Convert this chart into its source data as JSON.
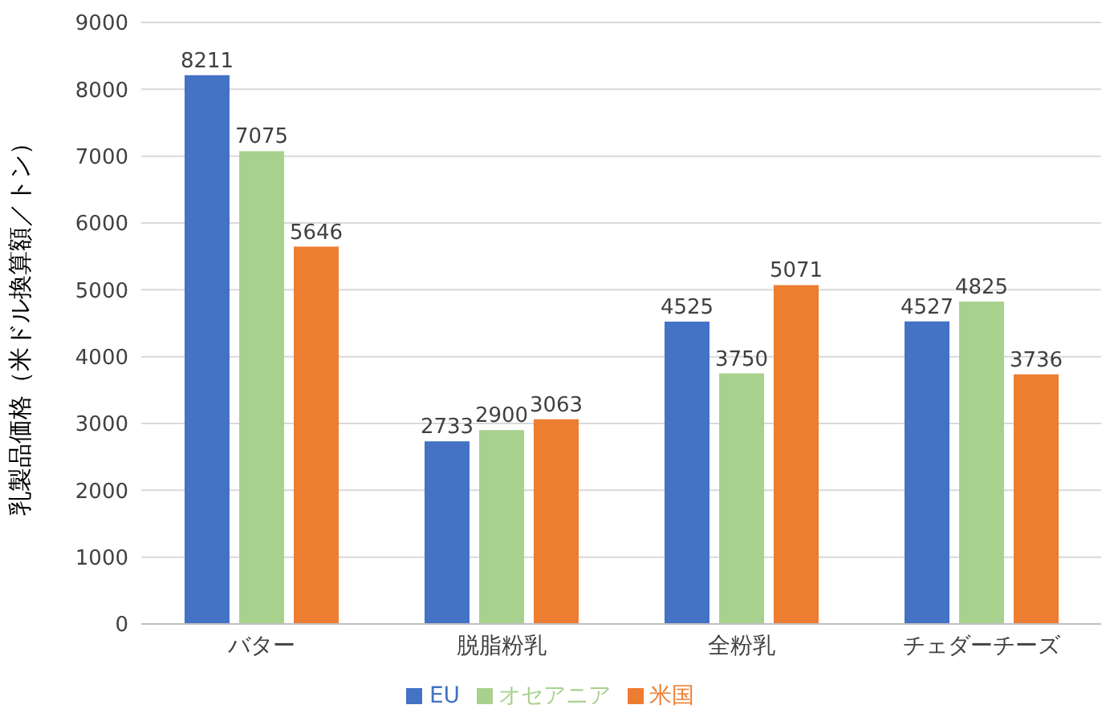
{
  "chart_data": {
    "type": "bar",
    "ylabel": "乳製品価格（米ドル換算額／トン）",
    "categories": [
      "バター",
      "脱脂粉乳",
      "全粉乳",
      "チェダーチーズ"
    ],
    "series": [
      {
        "name": "EU",
        "color": "#4472c4",
        "values": [
          8211,
          2733,
          4525,
          4527
        ]
      },
      {
        "name": "オセアニア",
        "color": "#a9d18e",
        "values": [
          7075,
          2900,
          3750,
          4825
        ]
      },
      {
        "name": "米国",
        "color": "#ed7d31",
        "values": [
          5646,
          3063,
          5071,
          3736
        ]
      }
    ],
    "ylim": [
      0,
      9000
    ],
    "yticks": [
      0,
      1000,
      2000,
      3000,
      4000,
      5000,
      6000,
      7000,
      8000,
      9000
    ],
    "grid": "y",
    "legend": "bottom",
    "data_labels": true
  }
}
